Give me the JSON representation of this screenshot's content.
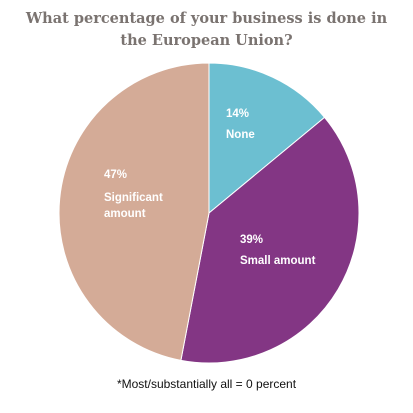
{
  "chart_data": {
    "type": "pie",
    "title_lines": [
      "What percentage of your business is done in",
      "the European Union?"
    ],
    "slices": [
      {
        "label": "None",
        "percent_label": "14%",
        "value": 14,
        "color": "#6cbfd1"
      },
      {
        "label": "Small amount",
        "percent_label": "39%",
        "value": 39,
        "color": "#833684"
      },
      {
        "label": "Significant amount",
        "label_lines": [
          "Significant",
          "amount"
        ],
        "percent_label": "47%",
        "value": 47,
        "color": "#d4ab97"
      }
    ],
    "footnote": "*Most/substantially all = 0 percent"
  }
}
